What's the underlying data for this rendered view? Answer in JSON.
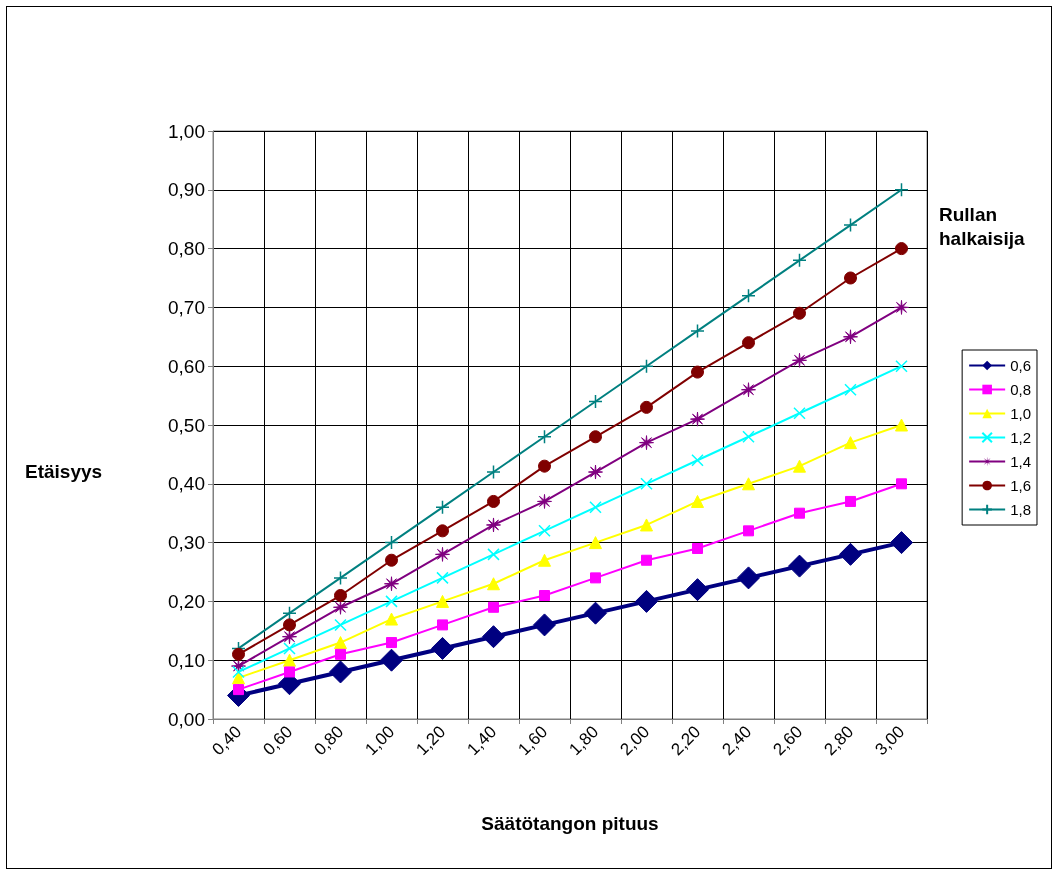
{
  "chart_data": {
    "type": "line",
    "xlabel": "Säätötangon pituus",
    "ylabel": "Etäisyys",
    "legend_title": "Rullan halkaisija",
    "legend": "right",
    "grid": true,
    "categories": [
      "0,40",
      "0,60",
      "0,80",
      "1,00",
      "1,20",
      "1,40",
      "1,60",
      "1,80",
      "2,00",
      "2,20",
      "2,40",
      "2,60",
      "2,80",
      "3,00"
    ],
    "ylim": [
      0,
      1
    ],
    "yticks": [
      {
        "value": 0,
        "label": "0,00"
      },
      {
        "value": 0.1,
        "label": "0,10"
      },
      {
        "value": 0.2,
        "label": "0,20"
      },
      {
        "value": 0.3,
        "label": "0,30"
      },
      {
        "value": 0.4,
        "label": "0,40"
      },
      {
        "value": 0.5,
        "label": "0,50"
      },
      {
        "value": 0.6,
        "label": "0,60"
      },
      {
        "value": 0.7,
        "label": "0,70"
      },
      {
        "value": 0.8,
        "label": "0,80"
      },
      {
        "value": 0.9,
        "label": "0,90"
      },
      {
        "value": 1,
        "label": "1,00"
      }
    ],
    "series": [
      {
        "name": "0,6",
        "color": "#000080",
        "marker": "diamond",
        "values": [
          0.04,
          0.06,
          0.08,
          0.1,
          0.12,
          0.14,
          0.16,
          0.18,
          0.2,
          0.22,
          0.24,
          0.26,
          0.28,
          0.3
        ]
      },
      {
        "name": "0,8",
        "color": "#ff00ff",
        "marker": "square",
        "values": [
          0.05,
          0.08,
          0.11,
          0.13,
          0.16,
          0.19,
          0.21,
          0.24,
          0.27,
          0.29,
          0.32,
          0.35,
          0.37,
          0.4
        ]
      },
      {
        "name": "1,0",
        "color": "#ffff00",
        "marker": "triangle",
        "values": [
          0.07,
          0.1,
          0.13,
          0.17,
          0.2,
          0.23,
          0.27,
          0.3,
          0.33,
          0.37,
          0.4,
          0.43,
          0.47,
          0.5
        ]
      },
      {
        "name": "1,2",
        "color": "#00ffff",
        "marker": "cross",
        "values": [
          0.08,
          0.12,
          0.16,
          0.2,
          0.24,
          0.28,
          0.32,
          0.36,
          0.4,
          0.44,
          0.48,
          0.52,
          0.56,
          0.6
        ]
      },
      {
        "name": "1,4",
        "color": "#800080",
        "marker": "star",
        "values": [
          0.09,
          0.14,
          0.19,
          0.23,
          0.28,
          0.33,
          0.37,
          0.42,
          0.47,
          0.51,
          0.56,
          0.61,
          0.65,
          0.7
        ]
      },
      {
        "name": "1,6",
        "color": "#800000",
        "marker": "circle",
        "values": [
          0.11,
          0.16,
          0.21,
          0.27,
          0.32,
          0.37,
          0.43,
          0.48,
          0.53,
          0.59,
          0.64,
          0.69,
          0.75,
          0.8
        ]
      },
      {
        "name": "1,8",
        "color": "#008080",
        "marker": "plus",
        "values": [
          0.12,
          0.18,
          0.24,
          0.3,
          0.36,
          0.42,
          0.48,
          0.54,
          0.6,
          0.66,
          0.72,
          0.78,
          0.84,
          0.9
        ]
      }
    ]
  }
}
